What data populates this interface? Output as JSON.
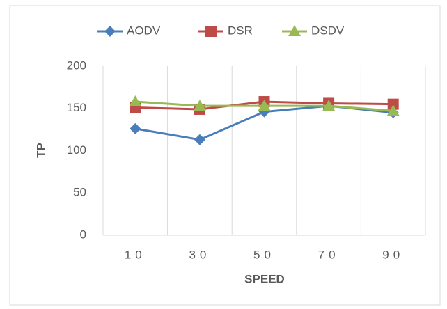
{
  "chart_data": {
    "type": "line",
    "xlabel": "SPEED",
    "ylabel": "TP",
    "categories": [
      "10",
      "30",
      "50",
      "70",
      "90"
    ],
    "series": [
      {
        "name": "AODV",
        "color": "#4a7ebb",
        "marker": "diamond",
        "values": [
          126,
          113,
          146,
          153,
          145
        ]
      },
      {
        "name": "DSR",
        "color": "#be4b48",
        "marker": "square",
        "values": [
          151,
          149,
          158,
          156,
          155
        ]
      },
      {
        "name": "DSDV",
        "color": "#98b954",
        "marker": "triangle",
        "values": [
          158,
          153,
          153,
          153,
          147
        ]
      }
    ],
    "ylim": [
      0,
      200
    ],
    "yticks": [
      0,
      50,
      100,
      150,
      200
    ],
    "legend": "top"
  }
}
